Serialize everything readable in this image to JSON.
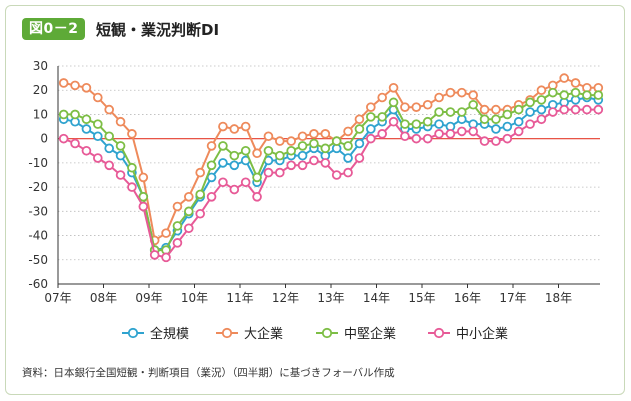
{
  "figure": {
    "badge": "図0－2",
    "title": "短観・業況判断DI",
    "source": "資料：日本銀行全国短観・判断項目（業況）（四半期）に基づきフォーバル作成"
  },
  "colors": {
    "badge": "#5eaa37",
    "zero_line": "#e53b2c",
    "gridline": "#bbbbbb"
  },
  "chart_data": {
    "type": "line",
    "x_tick_labels": [
      "07年",
      "08年",
      "09年",
      "10年",
      "11年",
      "12年",
      "13年",
      "14年",
      "15年",
      "16年",
      "17年",
      "18年"
    ],
    "y_ticks": [
      30,
      20,
      10,
      0,
      -10,
      -20,
      -30,
      -40,
      -50,
      -60
    ],
    "ylim": [
      -60,
      30
    ],
    "x": [
      "2007Q1",
      "2007Q2",
      "2007Q3",
      "2007Q4",
      "2008Q1",
      "2008Q2",
      "2008Q3",
      "2008Q4",
      "2009Q1",
      "2009Q2",
      "2009Q3",
      "2009Q4",
      "2010Q1",
      "2010Q2",
      "2010Q3",
      "2010Q4",
      "2011Q1",
      "2011Q2",
      "2011Q3",
      "2011Q4",
      "2012Q1",
      "2012Q2",
      "2012Q3",
      "2012Q4",
      "2013Q1",
      "2013Q2",
      "2013Q3",
      "2013Q4",
      "2014Q1",
      "2014Q2",
      "2014Q3",
      "2014Q4",
      "2015Q1",
      "2015Q2",
      "2015Q3",
      "2015Q4",
      "2016Q1",
      "2016Q2",
      "2016Q3",
      "2016Q4",
      "2017Q1",
      "2017Q2",
      "2017Q3",
      "2017Q4",
      "2018Q1",
      "2018Q2",
      "2018Q3",
      "2018Q4"
    ],
    "grid": "horizontal",
    "legend_position": "bottom",
    "series": [
      {
        "name": "全規模",
        "color": "#2fa3cf",
        "values": [
          8,
          7,
          4,
          1,
          -4,
          -7,
          -14,
          -24,
          -46,
          -45,
          -38,
          -31,
          -24,
          -16,
          -10,
          -11,
          -9,
          -18,
          -9,
          -9,
          -7,
          -7,
          -4,
          -7,
          -4,
          -8,
          -2,
          4,
          7,
          12,
          4,
          4,
          5,
          6,
          5,
          8,
          6,
          6,
          4,
          5,
          7,
          11,
          12,
          14,
          15,
          16,
          17,
          16
        ]
      },
      {
        "name": "大企業",
        "color": "#ee8a5b",
        "values": [
          23,
          22,
          21,
          17,
          12,
          7,
          2,
          -16,
          -42,
          -39,
          -28,
          -24,
          -14,
          -3,
          5,
          4,
          5,
          -6,
          1,
          -1,
          -1,
          1,
          2,
          2,
          -1,
          3,
          8,
          13,
          17,
          21,
          13,
          13,
          14,
          17,
          19,
          19,
          18,
          12,
          12,
          12,
          14,
          16,
          20,
          22,
          25,
          23,
          21,
          21
        ]
      },
      {
        "name": "中堅企業",
        "color": "#7dbe45",
        "values": [
          10,
          10,
          8,
          6,
          1,
          -3,
          -12,
          -24,
          -46,
          -46,
          -36,
          -30,
          -23,
          -11,
          -3,
          -7,
          -5,
          -16,
          -5,
          -7,
          -5,
          -3,
          -2,
          -4,
          -1,
          -3,
          4,
          9,
          9,
          15,
          6,
          6,
          7,
          11,
          11,
          11,
          14,
          8,
          8,
          10,
          12,
          15,
          16,
          19,
          18,
          19,
          18,
          18
        ]
      },
      {
        "name": "中小企業",
        "color": "#e75a97",
        "values": [
          0,
          -2,
          -5,
          -8,
          -11,
          -15,
          -20,
          -28,
          -48,
          -49,
          -43,
          -37,
          -31,
          -24,
          -18,
          -21,
          -18,
          -24,
          -14,
          -14,
          -11,
          -11,
          -9,
          -10,
          -15,
          -14,
          -8,
          0,
          2,
          7,
          1,
          0,
          0,
          2,
          2,
          3,
          3,
          -1,
          -1,
          0,
          3,
          6,
          8,
          11,
          12,
          12,
          12,
          12
        ]
      }
    ]
  }
}
